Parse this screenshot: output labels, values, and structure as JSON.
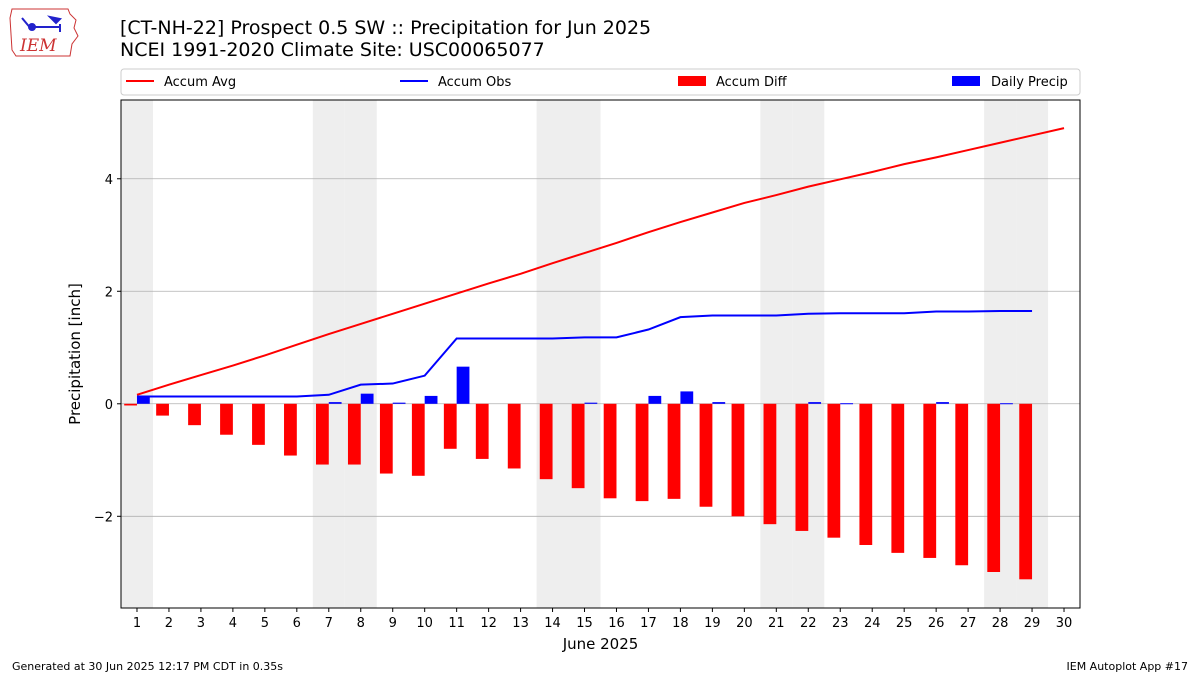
{
  "header": {
    "title_line1": "[CT-NH-22] Prospect 0.5 SW :: Precipitation for Jun 2025",
    "title_line2": "NCEI 1991-2020 Climate Site: USC00065077",
    "logo_text": "IEM"
  },
  "footer": {
    "left": "Generated at 30 Jun 2025 12:17 PM CDT in 0.35s",
    "right": "IEM Autoplot App #17"
  },
  "colors": {
    "avg": "#ff0000",
    "obs": "#0000ff",
    "diff": "#ff0000",
    "daily": "#0000ff",
    "weekend_shade": "#eeeeee",
    "grid": "#b0b0b0"
  },
  "chart_data": {
    "type": "bar",
    "xlabel": "June 2025",
    "ylabel": "Precipitation [inch]",
    "xlim": [
      0.5,
      30.5
    ],
    "ylim": [
      -3.63,
      5.4
    ],
    "y_ticks": [
      -2,
      0,
      2,
      4
    ],
    "y_tick_labels": [
      "−2",
      "0",
      "2",
      "4"
    ],
    "days": [
      1,
      2,
      3,
      4,
      5,
      6,
      7,
      8,
      9,
      10,
      11,
      12,
      13,
      14,
      15,
      16,
      17,
      18,
      19,
      20,
      21,
      22,
      23,
      24,
      25,
      26,
      27,
      28,
      29,
      30
    ],
    "weekend_days": [
      1,
      7,
      8,
      14,
      15,
      21,
      22,
      28,
      29
    ],
    "grid": "y",
    "legend_placement": "top",
    "legend": [
      {
        "key": "avg",
        "label": "Accum Avg",
        "kind": "line"
      },
      {
        "key": "obs",
        "label": "Accum Obs",
        "kind": "line"
      },
      {
        "key": "diff",
        "label": "Accum Diff",
        "kind": "bar"
      },
      {
        "key": "daily",
        "label": "Daily Precip",
        "kind": "bar"
      }
    ],
    "series": [
      {
        "name": "Accum Avg",
        "type": "line",
        "values": [
          0.16,
          0.34,
          0.51,
          0.68,
          0.86,
          1.05,
          1.24,
          1.42,
          1.6,
          1.78,
          1.96,
          2.14,
          2.31,
          2.5,
          2.68,
          2.86,
          3.05,
          3.23,
          3.4,
          3.57,
          3.71,
          3.86,
          3.99,
          4.12,
          4.26,
          4.38,
          4.51,
          4.64,
          4.77,
          4.9
        ]
      },
      {
        "name": "Accum Obs",
        "type": "line",
        "values": [
          0.13,
          0.13,
          0.13,
          0.13,
          0.13,
          0.13,
          0.16,
          0.34,
          0.36,
          0.5,
          1.16,
          1.16,
          1.16,
          1.16,
          1.18,
          1.18,
          1.32,
          1.54,
          1.57,
          1.57,
          1.57,
          1.6,
          1.61,
          1.61,
          1.61,
          1.64,
          1.64,
          1.65,
          1.65
        ]
      },
      {
        "name": "Accum Diff",
        "type": "bar",
        "values": [
          -0.03,
          -0.21,
          -0.38,
          -0.55,
          -0.73,
          -0.92,
          -1.08,
          -1.08,
          -1.24,
          -1.28,
          -0.8,
          -0.98,
          -1.15,
          -1.34,
          -1.5,
          -1.68,
          -1.73,
          -1.69,
          -1.83,
          -2.0,
          -2.14,
          -2.26,
          -2.38,
          -2.51,
          -2.65,
          -2.74,
          -2.87,
          -2.99,
          -3.12
        ]
      },
      {
        "name": "Daily Precip",
        "type": "bar",
        "values": [
          0.13,
          0,
          0,
          0,
          0,
          0,
          0.03,
          0.18,
          0.02,
          0.14,
          0.66,
          0,
          0,
          0,
          0.02,
          0,
          0.14,
          0.22,
          0.03,
          0,
          0,
          0.03,
          0.01,
          0,
          0,
          0.03,
          0,
          0.01,
          0
        ]
      }
    ]
  }
}
